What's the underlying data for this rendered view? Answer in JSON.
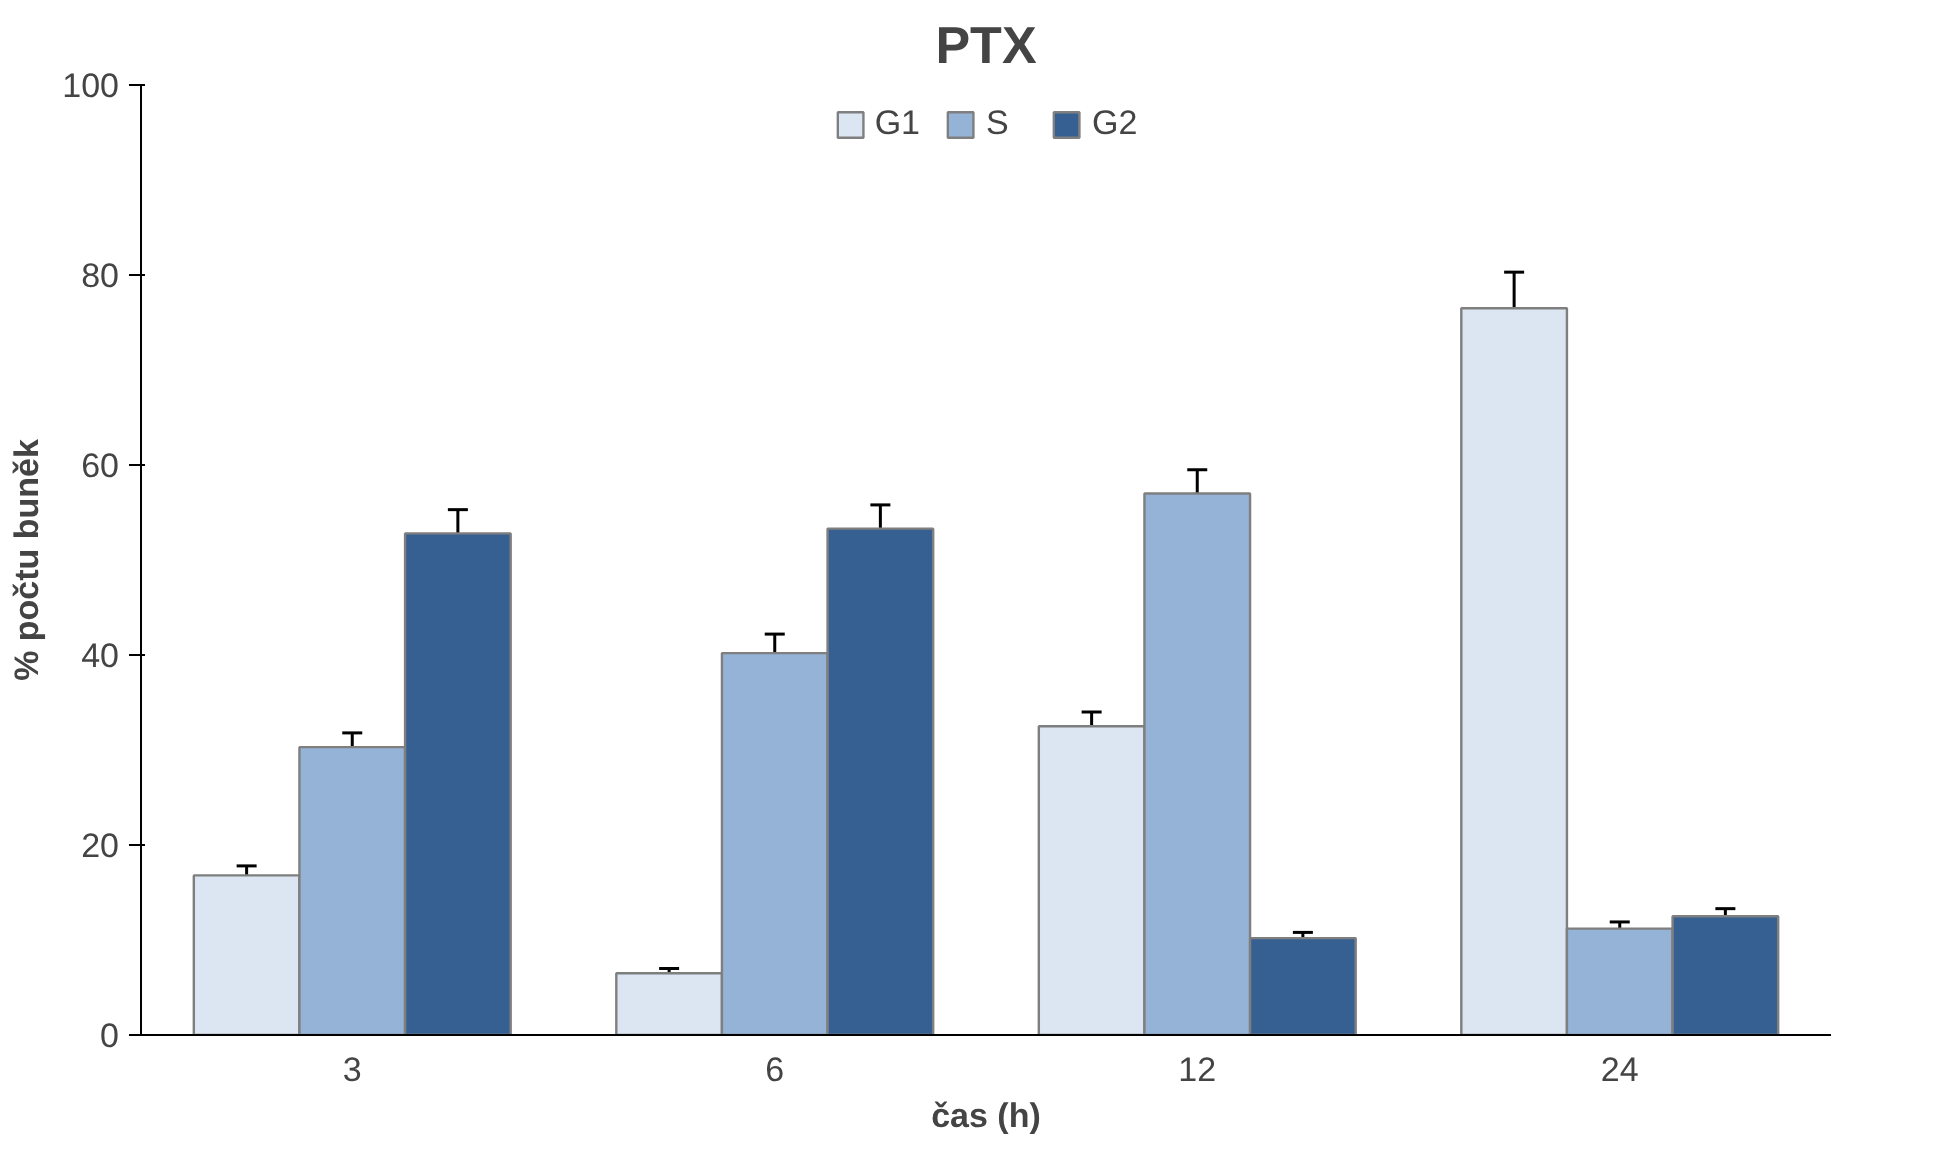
{
  "chart_data": {
    "type": "bar",
    "title": "PTX",
    "xlabel": "čas (h)",
    "ylabel": "% počtu buněk",
    "categories": [
      "3",
      "6",
      "12",
      "24"
    ],
    "series": [
      {
        "name": "G1",
        "color": "#dce6f2",
        "values": [
          16.8,
          6.5,
          32.5,
          76.5
        ],
        "errors": [
          1,
          0.5,
          1.5,
          3.8
        ]
      },
      {
        "name": "S",
        "color": "#95b3d7",
        "values": [
          30.3,
          40.2,
          57,
          11.2
        ],
        "errors": [
          1.5,
          2,
          2.5,
          0.7
        ]
      },
      {
        "name": "G2",
        "color": "#376092",
        "values": [
          52.8,
          53.3,
          10.2,
          12.5
        ],
        "errors": [
          2.5,
          2.5,
          0.6,
          0.8
        ]
      }
    ],
    "ylim": [
      0,
      100
    ],
    "yticks": [
      0,
      20,
      40,
      60,
      80,
      100
    ],
    "grid": false,
    "legend": "top"
  }
}
